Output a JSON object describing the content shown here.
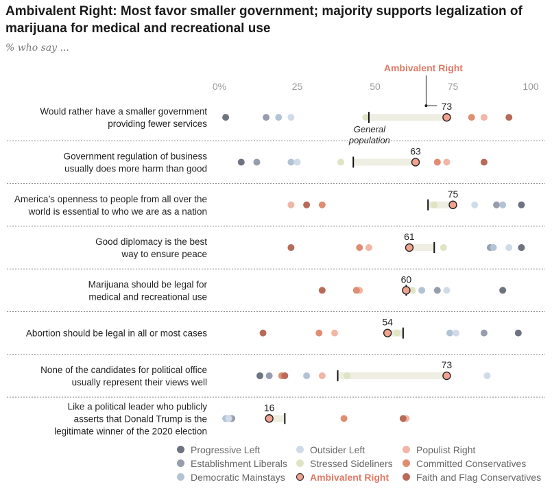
{
  "title": "Ambivalent Right: Most favor smaller government; majority supports legalization of marijuana for medical and recreational use",
  "subtitle": "% who say ...",
  "chart_data": {
    "type": "dot",
    "xlim": [
      0,
      100
    ],
    "ticks": [
      "0%",
      "25",
      "50",
      "75",
      "100"
    ],
    "tick_values": [
      0,
      25,
      50,
      75,
      100
    ],
    "highlight_series": "Ambivalent Right",
    "highlight_label": "Ambivalent Right",
    "general_population_label": "General population",
    "series": [
      {
        "name": "Progressive Left",
        "color": "#6e7380"
      },
      {
        "name": "Establishment Liberals",
        "color": "#979dad"
      },
      {
        "name": "Democratic Mainstays",
        "color": "#b3c3d6"
      },
      {
        "name": "Outsider Left",
        "color": "#cfdbe7"
      },
      {
        "name": "Stressed Sideliners",
        "color": "#dfe4c4"
      },
      {
        "name": "Ambivalent Right",
        "color": "#f0a28f"
      },
      {
        "name": "Populist Right",
        "color": "#f2b6a6"
      },
      {
        "name": "Committed Conservatives",
        "color": "#df8e73"
      },
      {
        "name": "Faith and Flag Conservatives",
        "color": "#b86b58"
      }
    ],
    "rows": [
      {
        "label": [
          "Would rather have a smaller government",
          "providing fewer services"
        ],
        "general_population": 48,
        "ambivalent_right": 73,
        "ambivalent_right_label": "73",
        "values": {
          "Progressive Left": 2,
          "Establishment Liberals": 15,
          "Democratic Mainstays": 19,
          "Outsider Left": 23,
          "Stressed Sideliners": 47,
          "Populist Right": 85,
          "Committed Conservatives": 81,
          "Faith and Flag Conservatives": 93
        }
      },
      {
        "label": [
          "Government regulation of business",
          "usually does more harm than good"
        ],
        "general_population": 43,
        "ambivalent_right": 63,
        "ambivalent_right_label": "63",
        "values": {
          "Progressive Left": 7,
          "Establishment Liberals": 12,
          "Democratic Mainstays": 23,
          "Outsider Left": 25,
          "Stressed Sideliners": 39,
          "Populist Right": 73,
          "Committed Conservatives": 70,
          "Faith and Flag Conservatives": 85
        }
      },
      {
        "label": [
          "America’s openness to people from all over the",
          "world is essential to who we are as a nation"
        ],
        "general_population": 67,
        "ambivalent_right": 75,
        "ambivalent_right_label": "75",
        "values": {
          "Progressive Left": 97,
          "Establishment Liberals": 89,
          "Democratic Mainstays": 91,
          "Outsider Left": 82,
          "Stressed Sideliners": 69,
          "Populist Right": 23,
          "Committed Conservatives": 33,
          "Faith and Flag Conservatives": 28
        }
      },
      {
        "label": [
          "Good diplomacy is the best",
          "way to ensure peace"
        ],
        "general_population": 69,
        "ambivalent_right": 61,
        "ambivalent_right_label": "61",
        "values": {
          "Progressive Left": 97,
          "Establishment Liberals": 87,
          "Democratic Mainstays": 88,
          "Outsider Left": 93,
          "Stressed Sideliners": 72,
          "Populist Right": 48,
          "Committed Conservatives": 45,
          "Faith and Flag Conservatives": 23
        }
      },
      {
        "label": [
          "Marijuana should be legal for",
          "medical and recreational use"
        ],
        "general_population": 60,
        "ambivalent_right": 60,
        "ambivalent_right_label": "60",
        "values": {
          "Progressive Left": 91,
          "Establishment Liberals": 70,
          "Democratic Mainstays": 65,
          "Outsider Left": 73,
          "Stressed Sideliners": 62,
          "Populist Right": 45,
          "Committed Conservatives": 44,
          "Faith and Flag Conservatives": 33
        }
      },
      {
        "label": [
          "Abortion should be legal in all or most cases"
        ],
        "general_population": 59,
        "ambivalent_right": 54,
        "ambivalent_right_label": "54",
        "values": {
          "Progressive Left": 96,
          "Establishment Liberals": 85,
          "Democratic Mainstays": 74,
          "Outsider Left": 76,
          "Stressed Sideliners": 57,
          "Populist Right": 37,
          "Committed Conservatives": 32,
          "Faith and Flag Conservatives": 14
        }
      },
      {
        "label": [
          "None of the candidates for political office",
          "usually represent their views well"
        ],
        "general_population": 38,
        "ambivalent_right": 73,
        "ambivalent_right_label": "73",
        "values": {
          "Progressive Left": 13,
          "Establishment Liberals": 16,
          "Democratic Mainstays": 28,
          "Outsider Left": 86,
          "Stressed Sideliners": 41,
          "Populist Right": 33,
          "Committed Conservatives": 20,
          "Faith and Flag Conservatives": 21
        }
      },
      {
        "label": [
          "Like a political leader who publicly",
          "asserts that Donald Trump is the",
          "legitimate winner of the 2020 election"
        ],
        "general_population": 21,
        "ambivalent_right": 16,
        "ambivalent_right_label": "16",
        "values": {
          "Progressive Left": 3,
          "Establishment Liberals": 4,
          "Democratic Mainstays": 2,
          "Outsider Left": 3,
          "Stressed Sideliners": 16,
          "Populist Right": 60,
          "Committed Conservatives": 40,
          "Faith and Flag Conservatives": 59
        }
      }
    ]
  },
  "legend": [
    {
      "name": "Progressive Left",
      "color": "#6e7380"
    },
    {
      "name": "Outsider Left",
      "color": "#cfdbe7"
    },
    {
      "name": "Populist Right",
      "color": "#f2b6a6"
    },
    {
      "name": "Establishment Liberals",
      "color": "#979dad"
    },
    {
      "name": "Stressed Sideliners",
      "color": "#dfe4c4"
    },
    {
      "name": "Committed Conservatives",
      "color": "#df8e73"
    },
    {
      "name": "Democratic Mainstays",
      "color": "#b3c3d6"
    },
    {
      "name": "Ambivalent Right",
      "color": "#f0a28f",
      "highlight": true
    },
    {
      "name": "Faith and Flag Conservatives",
      "color": "#b86b58"
    }
  ],
  "colors": {
    "highlight_text": "#e07a66",
    "gp_bar": "#eeeee2",
    "divider": "#888888"
  }
}
